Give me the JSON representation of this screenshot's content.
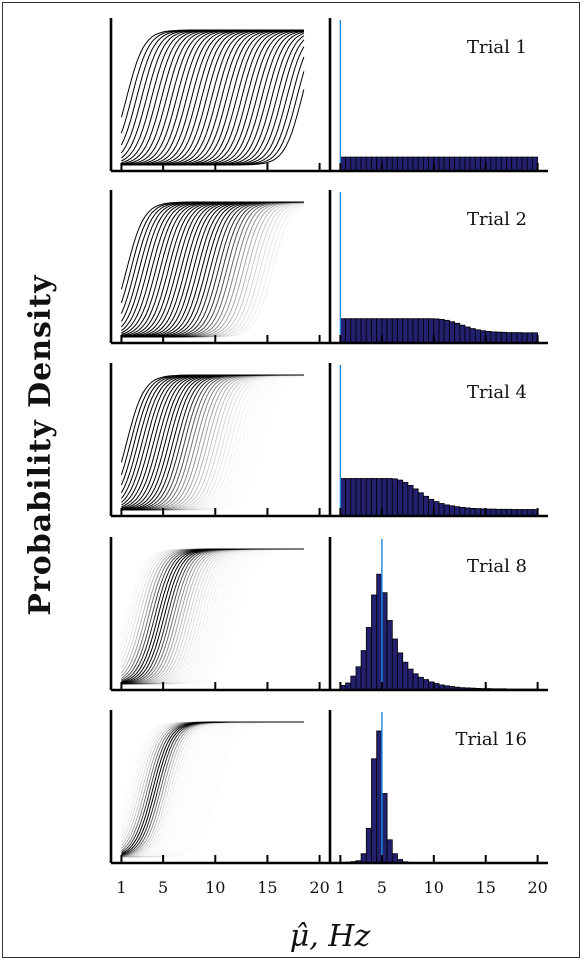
{
  "colors": {
    "bar": "#23206e",
    "marker_line": "#1e88d8",
    "curve": "#000000"
  },
  "chart_data": {
    "type": "bar",
    "ylabel": "Probability Density",
    "xlabel": "μ̂, Hz",
    "xlim": [
      0,
      21
    ],
    "xticks": [
      1,
      5,
      10,
      15,
      20
    ],
    "xtick_labels_left": [
      "1",
      "5",
      "10",
      "15",
      "20"
    ],
    "xtick_labels_right": [
      "1",
      "5",
      "10",
      "15",
      "20"
    ],
    "panels": [
      {
        "title": "Trial 1",
        "marker": 1,
        "curves": {
          "centers": [
            1.5,
            1.98,
            2.46,
            2.94,
            3.42,
            3.9,
            4.38,
            4.86,
            5.34,
            5.82,
            6.3,
            6.78,
            7.26,
            7.74,
            8.22,
            8.7,
            9.18,
            9.66,
            10.14,
            10.62,
            11.1,
            11.58,
            12.06,
            12.54,
            13.02,
            13.5,
            13.98,
            14.46,
            14.94,
            15.42,
            15.9,
            16.38,
            16.86,
            17.34,
            17.82,
            18.3
          ],
          "opacities": [
            1,
            1,
            1,
            1,
            1,
            1,
            1,
            1,
            1,
            1,
            1,
            1,
            1,
            1,
            1,
            1,
            1,
            1,
            1,
            1,
            1,
            1,
            1,
            1,
            1,
            1,
            1,
            1,
            1,
            1,
            1,
            1,
            1,
            1,
            1,
            1
          ]
        },
        "x": [
          1.25,
          1.75,
          2.25,
          2.75,
          3.25,
          3.75,
          4.25,
          4.75,
          5.25,
          5.75,
          6.25,
          6.75,
          7.25,
          7.75,
          8.25,
          8.75,
          9.25,
          9.75,
          10.25,
          10.75,
          11.25,
          11.75,
          12.25,
          12.75,
          13.25,
          13.75,
          14.25,
          14.75,
          15.25,
          15.75,
          16.25,
          16.75,
          17.25,
          17.75,
          18.25,
          18.75,
          19.25,
          19.75
        ],
        "values": [
          0.06,
          0.06,
          0.06,
          0.06,
          0.06,
          0.06,
          0.06,
          0.06,
          0.06,
          0.06,
          0.06,
          0.06,
          0.06,
          0.06,
          0.06,
          0.06,
          0.06,
          0.06,
          0.06,
          0.06,
          0.06,
          0.06,
          0.06,
          0.06,
          0.06,
          0.06,
          0.06,
          0.06,
          0.06,
          0.06,
          0.06,
          0.06,
          0.06,
          0.06,
          0.06,
          0.06,
          0.06,
          0.06
        ],
        "ylim": [
          0,
          0.6
        ]
      },
      {
        "title": "Trial 2",
        "marker": 1,
        "curves": {
          "centers": [
            1.5,
            1.9,
            2.3,
            2.7,
            3.1,
            3.5,
            3.9,
            4.3,
            4.7,
            5.1,
            5.5,
            5.9,
            6.3,
            6.7,
            7.1,
            7.5,
            7.9,
            8.3,
            8.7,
            9.1,
            9.5,
            9.9,
            10.3,
            10.7,
            11.1,
            11.5,
            11.9,
            12.3,
            12.7,
            13.1,
            13.5,
            13.9,
            14.3,
            14.7,
            15.1,
            15.5
          ],
          "opacities": [
            1,
            1,
            1,
            1,
            1,
            1,
            1,
            1,
            1,
            1,
            1,
            1,
            1,
            1,
            1,
            1,
            1,
            1,
            1,
            1,
            0.95,
            0.9,
            0.85,
            0.8,
            0.7,
            0.6,
            0.5,
            0.42,
            0.35,
            0.28,
            0.22,
            0.17,
            0.13,
            0.1,
            0.08,
            0.06
          ]
        },
        "x": [
          1.25,
          1.75,
          2.25,
          2.75,
          3.25,
          3.75,
          4.25,
          4.75,
          5.25,
          5.75,
          6.25,
          6.75,
          7.25,
          7.75,
          8.25,
          8.75,
          9.25,
          9.75,
          10.25,
          10.75,
          11.25,
          11.75,
          12.25,
          12.75,
          13.25,
          13.75,
          14.25,
          14.75,
          15.25,
          15.75,
          16.25,
          16.75,
          17.25,
          17.75,
          18.25,
          18.75,
          19.25,
          19.75
        ],
        "values": [
          0.105,
          0.105,
          0.105,
          0.105,
          0.105,
          0.105,
          0.105,
          0.105,
          0.105,
          0.105,
          0.105,
          0.105,
          0.105,
          0.105,
          0.105,
          0.105,
          0.105,
          0.105,
          0.104,
          0.102,
          0.098,
          0.092,
          0.085,
          0.077,
          0.069,
          0.062,
          0.057,
          0.053,
          0.05,
          0.048,
          0.047,
          0.046,
          0.045,
          0.045,
          0.045,
          0.044,
          0.044,
          0.044
        ],
        "ylim": [
          0,
          0.6
        ]
      },
      {
        "title": "Trial 4",
        "marker": 1,
        "curves": {
          "centers": [
            1.5,
            1.87,
            2.24,
            2.61,
            2.98,
            3.35,
            3.72,
            4.09,
            4.46,
            4.83,
            5.2,
            5.57,
            5.94,
            6.31,
            6.68,
            7.05,
            7.42,
            7.79,
            8.16,
            8.53,
            8.9,
            9.27,
            9.64,
            10.01,
            10.38,
            10.75,
            11.12,
            11.49,
            11.86,
            12.23,
            12.6,
            12.97,
            13.34,
            13.71,
            14.08,
            14.45
          ],
          "opacities": [
            1,
            1,
            1,
            1,
            1,
            1,
            1,
            1,
            1,
            1,
            1,
            1,
            1,
            0.95,
            0.85,
            0.75,
            0.65,
            0.55,
            0.48,
            0.42,
            0.36,
            0.3,
            0.25,
            0.2,
            0.16,
            0.13,
            0.1,
            0.08,
            0.06,
            0.05,
            0.04,
            0.03,
            0.03,
            0.02,
            0.02,
            0.02
          ]
        },
        "x": [
          1.25,
          1.75,
          2.25,
          2.75,
          3.25,
          3.75,
          4.25,
          4.75,
          5.25,
          5.75,
          6.25,
          6.75,
          7.25,
          7.75,
          8.25,
          8.75,
          9.25,
          9.75,
          10.25,
          10.75,
          11.25,
          11.75,
          12.25,
          12.75,
          13.25,
          13.75,
          14.25,
          14.75,
          15.25,
          15.75,
          16.25,
          16.75,
          17.25,
          17.75,
          18.25,
          18.75,
          19.25,
          19.75
        ],
        "values": [
          0.162,
          0.162,
          0.162,
          0.162,
          0.162,
          0.162,
          0.162,
          0.162,
          0.162,
          0.162,
          0.16,
          0.155,
          0.145,
          0.132,
          0.117,
          0.1,
          0.085,
          0.072,
          0.062,
          0.054,
          0.048,
          0.044,
          0.04,
          0.037,
          0.035,
          0.033,
          0.032,
          0.031,
          0.03,
          0.03,
          0.029,
          0.029,
          0.029,
          0.028,
          0.028,
          0.028,
          0.028,
          0.028
        ],
        "ylim": [
          0,
          0.6
        ]
      },
      {
        "title": "Trial 8",
        "marker": 5,
        "curves": {
          "centers": [
            1.5,
            1.8,
            2.1,
            2.4,
            2.7,
            3.0,
            3.3,
            3.6,
            3.9,
            4.2,
            4.5,
            4.8,
            5.1,
            5.4,
            5.7,
            6.0,
            6.3,
            6.6,
            6.9,
            7.2,
            7.5,
            7.8,
            8.1,
            8.4,
            8.7,
            9.0,
            9.3,
            9.6,
            9.9,
            10.2,
            10.5,
            10.8,
            11.1,
            11.4,
            11.7,
            12.0
          ],
          "opacities": [
            0.04,
            0.06,
            0.08,
            0.12,
            0.18,
            0.28,
            0.4,
            0.55,
            0.72,
            0.88,
            1,
            1,
            1,
            0.85,
            0.7,
            0.55,
            0.45,
            0.36,
            0.29,
            0.23,
            0.18,
            0.15,
            0.12,
            0.1,
            0.08,
            0.07,
            0.06,
            0.05,
            0.04,
            0.04,
            0.03,
            0.03,
            0.03,
            0.02,
            0.02,
            0.02
          ]
        },
        "x": [
          1.25,
          1.75,
          2.25,
          2.75,
          3.25,
          3.75,
          4.25,
          4.75,
          5.25,
          5.75,
          6.25,
          6.75,
          7.25,
          7.75,
          8.25,
          8.75,
          9.25,
          9.75,
          10.25,
          10.75,
          11.25,
          11.75,
          12.25,
          12.75,
          13.25,
          13.75,
          14.25,
          14.75,
          15.25,
          15.75,
          16.25,
          16.75,
          17.25,
          17.75,
          18.25,
          18.75,
          19.25,
          19.75
        ],
        "values": [
          0.02,
          0.03,
          0.06,
          0.1,
          0.17,
          0.27,
          0.41,
          0.5,
          0.42,
          0.3,
          0.22,
          0.16,
          0.12,
          0.09,
          0.07,
          0.055,
          0.045,
          0.035,
          0.028,
          0.022,
          0.018,
          0.015,
          0.012,
          0.01,
          0.009,
          0.008,
          0.007,
          0.006,
          0.006,
          0.005,
          0.005,
          0.005,
          0.004,
          0.004,
          0.004,
          0.004,
          0.004,
          0.004
        ],
        "ylim": [
          0,
          0.6
        ]
      },
      {
        "title": "Trial 16",
        "marker": 5,
        "curves": {
          "centers": [
            1.5,
            1.75,
            2.0,
            2.25,
            2.5,
            2.75,
            3.0,
            3.25,
            3.5,
            3.75,
            4.0,
            4.25,
            4.5,
            4.75,
            5.0,
            5.25,
            5.5,
            5.75,
            6.0,
            6.25,
            6.5,
            6.75,
            7.0,
            7.25,
            7.5,
            7.75,
            8.0,
            8.25,
            8.5,
            8.75,
            9.0,
            9.25,
            9.5,
            9.75,
            10.0,
            10.25
          ],
          "opacities": [
            0.02,
            0.03,
            0.04,
            0.06,
            0.09,
            0.14,
            0.22,
            0.35,
            0.55,
            0.8,
            1,
            1,
            0.85,
            0.6,
            0.4,
            0.25,
            0.15,
            0.1,
            0.07,
            0.05,
            0.04,
            0.03,
            0.03,
            0.02,
            0.02,
            0.02,
            0.02,
            0.02,
            0.02,
            0.02,
            0.02,
            0.02,
            0.02,
            0.02,
            0.02,
            0.02
          ]
        },
        "x": [
          1.25,
          1.75,
          2.25,
          2.75,
          3.25,
          3.75,
          4.25,
          4.75,
          5.25,
          5.75,
          6.25,
          6.75,
          7.25,
          7.75,
          8.25,
          8.75,
          9.25,
          9.75,
          10.25,
          10.75,
          11.25,
          11.75,
          12.25,
          12.75,
          13.25,
          13.75,
          14.25,
          14.75,
          15.25,
          15.75,
          16.25,
          16.75,
          17.25,
          17.75,
          18.25,
          18.75,
          19.25,
          19.75
        ],
        "values": [
          0.0,
          0.004,
          0.006,
          0.01,
          0.04,
          0.15,
          0.45,
          0.57,
          0.3,
          0.1,
          0.04,
          0.015,
          0.005,
          0.003,
          0.002,
          0.001,
          0.001,
          0.001,
          0.001,
          0.001,
          0.001,
          0.001,
          0.001,
          0.001,
          0.001,
          0.001,
          0.001,
          0.001,
          0.001,
          0.001,
          0.001,
          0.001,
          0.001,
          0.001,
          0.001,
          0.001,
          0.001,
          0.001
        ],
        "ylim": [
          0,
          0.6
        ]
      }
    ]
  }
}
